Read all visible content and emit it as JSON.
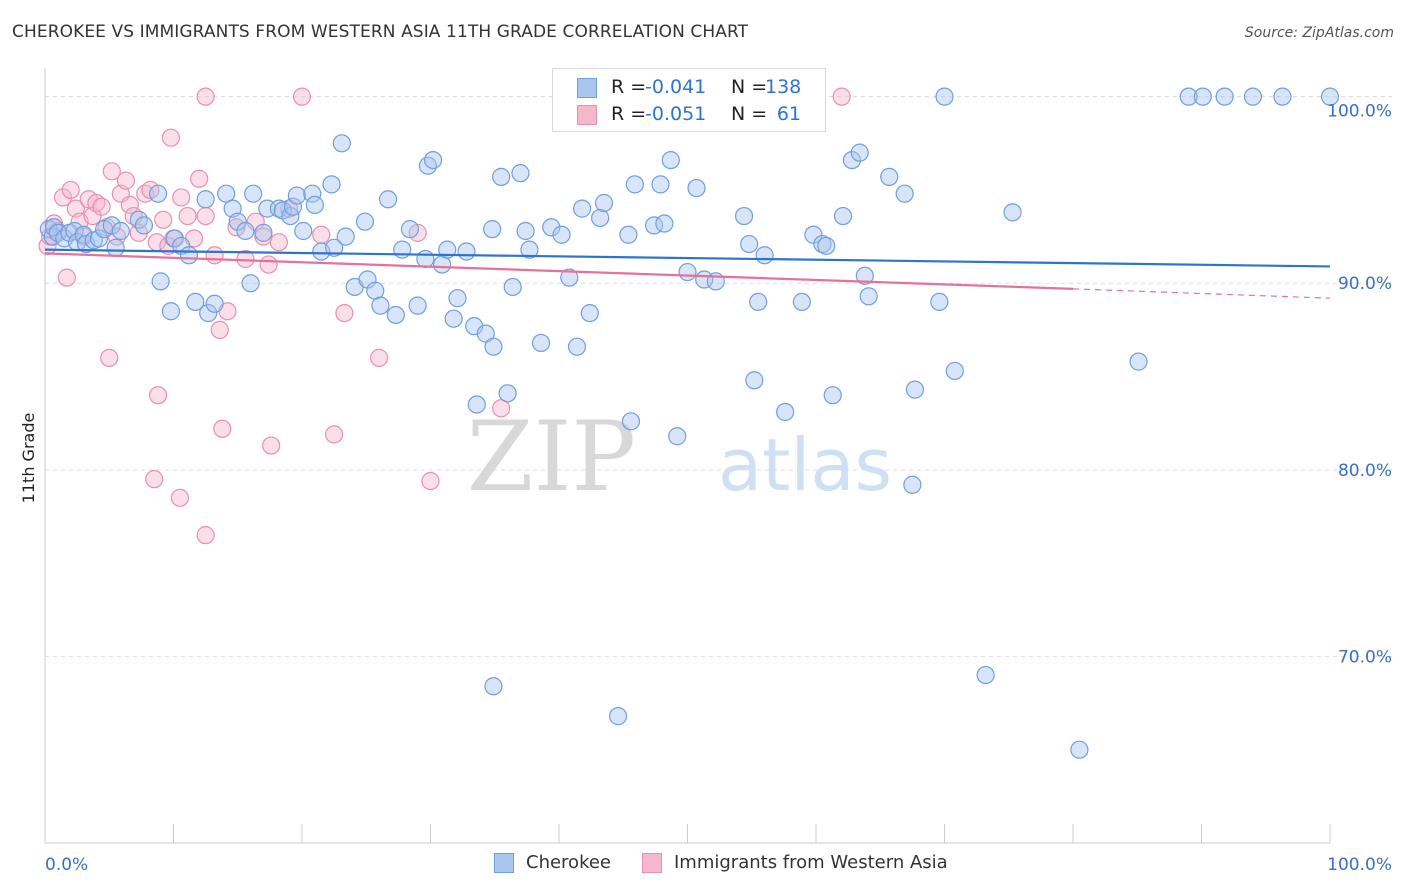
{
  "header": {
    "title": "CHEROKEE VS IMMIGRANTS FROM WESTERN ASIA 11TH GRADE CORRELATION CHART",
    "source": "Source: ZipAtlas.com"
  },
  "watermark": {
    "zip": "ZIP",
    "atlas": "atlas"
  },
  "legend": {
    "r_label": "R =",
    "n_label": "N =",
    "rows": [
      {
        "r": "-0.041",
        "n": "138"
      },
      {
        "r": "-0.051",
        "n": "61"
      }
    ]
  },
  "colors": {
    "blue_fill": "#a9c6ef",
    "blue_stroke": "#6f9fdd",
    "blue_line": "#2f73d0",
    "pink_fill": "#f5b8cb",
    "pink_stroke": "#ea8fae",
    "pink_line": "#e5729a",
    "axis_text": "#3a6fc4",
    "grid": "#dddddd"
  },
  "chart_data": {
    "type": "scatter",
    "title": "CHEROKEE VS IMMIGRANTS FROM WESTERN ASIA 11TH GRADE CORRELATION CHART",
    "xlabel": "",
    "ylabel": "11th Grade",
    "xlim": [
      0,
      100
    ],
    "ylim": [
      60,
      102
    ],
    "x_tick_labels": [
      "0.0%",
      "100.0%"
    ],
    "y_tick_labels": [
      {
        "value": 100,
        "label": "100.0%"
      },
      {
        "value": 90,
        "label": "90.0%"
      },
      {
        "value": 80,
        "label": "80.0%"
      },
      {
        "value": 70,
        "label": "70.0%"
      }
    ],
    "series": [
      {
        "name": "Cherokee",
        "r": -0.041,
        "n": 138,
        "trend": {
          "x": [
            0,
            100
          ],
          "y": [
            91.8,
            90.9
          ]
        },
        "points": [
          [
            0.3,
            92.9
          ],
          [
            0.6,
            92.5
          ],
          [
            0.7,
            93.0
          ],
          [
            1.0,
            92.7
          ],
          [
            1.5,
            92.4
          ],
          [
            1.9,
            92.7
          ],
          [
            2.3,
            92.8
          ],
          [
            2.5,
            92.2
          ],
          [
            3.0,
            92.6
          ],
          [
            3.2,
            92.1
          ],
          [
            3.8,
            92.3
          ],
          [
            4.2,
            92.4
          ],
          [
            4.6,
            92.9
          ],
          [
            5.2,
            93.1
          ],
          [
            5.5,
            91.9
          ],
          [
            5.9,
            92.8
          ],
          [
            7.3,
            93.4
          ],
          [
            7.7,
            93.1
          ],
          [
            8.8,
            94.8
          ],
          [
            9.0,
            90.1
          ],
          [
            9.8,
            88.5
          ],
          [
            10.1,
            92.4
          ],
          [
            10.6,
            92.0
          ],
          [
            11.2,
            91.5
          ],
          [
            11.7,
            89.0
          ],
          [
            12.5,
            94.5
          ],
          [
            12.7,
            88.4
          ],
          [
            13.2,
            88.9
          ],
          [
            14.1,
            94.8
          ],
          [
            14.6,
            94.0
          ],
          [
            15.0,
            93.3
          ],
          [
            15.6,
            92.8
          ],
          [
            16.0,
            90.0
          ],
          [
            16.2,
            94.8
          ],
          [
            17.0,
            92.7
          ],
          [
            17.3,
            94.0
          ],
          [
            18.2,
            94.0
          ],
          [
            18.5,
            93.9
          ],
          [
            19.1,
            93.6
          ],
          [
            19.3,
            94.1
          ],
          [
            19.6,
            94.7
          ],
          [
            20.1,
            92.8
          ],
          [
            20.8,
            94.8
          ],
          [
            21.0,
            94.2
          ],
          [
            21.5,
            91.7
          ],
          [
            22.5,
            91.9
          ],
          [
            22.3,
            95.3
          ],
          [
            23.1,
            97.5
          ],
          [
            23.4,
            92.5
          ],
          [
            24.1,
            89.8
          ],
          [
            24.9,
            93.3
          ],
          [
            25.1,
            90.2
          ],
          [
            25.7,
            89.6
          ],
          [
            26.1,
            88.8
          ],
          [
            26.7,
            94.5
          ],
          [
            27.3,
            88.3
          ],
          [
            27.8,
            91.8
          ],
          [
            28.4,
            92.9
          ],
          [
            29.0,
            88.8
          ],
          [
            29.6,
            91.3
          ],
          [
            29.8,
            96.3
          ],
          [
            30.2,
            96.6
          ],
          [
            30.9,
            91.0
          ],
          [
            31.3,
            91.8
          ],
          [
            31.8,
            88.1
          ],
          [
            32.1,
            89.2
          ],
          [
            32.8,
            91.7
          ],
          [
            33.4,
            87.7
          ],
          [
            33.6,
            83.5
          ],
          [
            34.3,
            87.3
          ],
          [
            34.8,
            92.9
          ],
          [
            34.9,
            86.6
          ],
          [
            34.9,
            68.4
          ],
          [
            35.5,
            95.7
          ],
          [
            36.0,
            84.1
          ],
          [
            36.4,
            89.8
          ],
          [
            37.0,
            95.9
          ],
          [
            37.4,
            92.8
          ],
          [
            37.7,
            91.8
          ],
          [
            38.6,
            86.8
          ],
          [
            39.4,
            93.0
          ],
          [
            40.2,
            92.6
          ],
          [
            40.8,
            90.3
          ],
          [
            41.4,
            86.6
          ],
          [
            41.8,
            94.0
          ],
          [
            42.4,
            88.4
          ],
          [
            43.2,
            93.5
          ],
          [
            43.5,
            94.3
          ],
          [
            44.6,
            66.8
          ],
          [
            45.4,
            92.6
          ],
          [
            45.6,
            82.6
          ],
          [
            45.9,
            95.3
          ],
          [
            47.4,
            93.1
          ],
          [
            47.9,
            95.3
          ],
          [
            48.2,
            93.2
          ],
          [
            48.7,
            96.6
          ],
          [
            49.2,
            81.8
          ],
          [
            50.0,
            90.6
          ],
          [
            50.7,
            95.1
          ],
          [
            51.3,
            90.2
          ],
          [
            52.2,
            90.1
          ],
          [
            54.4,
            93.6
          ],
          [
            54.8,
            92.1
          ],
          [
            55.2,
            84.8
          ],
          [
            55.5,
            89.0
          ],
          [
            56.0,
            91.5
          ],
          [
            57.6,
            83.1
          ],
          [
            58.9,
            89.0
          ],
          [
            59.8,
            92.6
          ],
          [
            60.5,
            92.1
          ],
          [
            60.8,
            92.0
          ],
          [
            61.3,
            84.0
          ],
          [
            62.1,
            93.6
          ],
          [
            62.8,
            96.6
          ],
          [
            63.4,
            97.0
          ],
          [
            63.8,
            90.4
          ],
          [
            64.1,
            89.3
          ],
          [
            65.7,
            95.7
          ],
          [
            66.9,
            94.8
          ],
          [
            67.5,
            79.2
          ],
          [
            67.7,
            84.3
          ],
          [
            69.6,
            89.0
          ],
          [
            70.8,
            85.3
          ],
          [
            73.2,
            69.0
          ],
          [
            75.3,
            93.8
          ],
          [
            85.1,
            85.8
          ],
          [
            89.0,
            100.0
          ],
          [
            90.1,
            100.0
          ],
          [
            91.8,
            100.0
          ],
          [
            94.0,
            100.0
          ],
          [
            96.3,
            100.0
          ],
          [
            100.0,
            100.0
          ],
          [
            80.5,
            65.0
          ],
          [
            70.0,
            100.0
          ]
        ]
      },
      {
        "name": "Immigrants from Western Asia",
        "r": -0.051,
        "n": 61,
        "trend": {
          "x": [
            0,
            80
          ],
          "y": [
            91.6,
            89.7
          ]
        },
        "trend_extension": {
          "x": [
            80,
            100
          ],
          "y": [
            89.7,
            89.2
          ]
        },
        "points": [
          [
            0.2,
            92.0
          ],
          [
            0.4,
            92.5
          ],
          [
            0.7,
            93.2
          ],
          [
            1.0,
            92.8
          ],
          [
            1.4,
            94.6
          ],
          [
            1.7,
            90.3
          ],
          [
            2.0,
            95.0
          ],
          [
            2.4,
            94.0
          ],
          [
            2.7,
            93.3
          ],
          [
            3.0,
            92.5
          ],
          [
            3.4,
            94.5
          ],
          [
            3.7,
            93.6
          ],
          [
            4.0,
            94.3
          ],
          [
            4.4,
            94.1
          ],
          [
            4.8,
            93.0
          ],
          [
            5.2,
            96.0
          ],
          [
            5.6,
            92.5
          ],
          [
            5.9,
            94.8
          ],
          [
            6.3,
            95.5
          ],
          [
            6.6,
            94.2
          ],
          [
            6.9,
            93.6
          ],
          [
            7.3,
            92.7
          ],
          [
            7.8,
            94.8
          ],
          [
            8.2,
            95.0
          ],
          [
            8.7,
            92.2
          ],
          [
            9.2,
            93.4
          ],
          [
            9.6,
            92.0
          ],
          [
            10.0,
            92.4
          ],
          [
            10.6,
            94.6
          ],
          [
            11.1,
            93.6
          ],
          [
            11.6,
            92.4
          ],
          [
            12.0,
            95.6
          ],
          [
            12.5,
            93.6
          ],
          [
            13.2,
            91.5
          ],
          [
            13.6,
            87.5
          ],
          [
            14.2,
            88.5
          ],
          [
            14.9,
            93.0
          ],
          [
            15.6,
            91.3
          ],
          [
            16.4,
            93.3
          ],
          [
            17.0,
            92.5
          ],
          [
            17.4,
            91.0
          ],
          [
            18.2,
            92.2
          ],
          [
            19.0,
            94.0
          ],
          [
            21.5,
            92.6
          ],
          [
            23.3,
            88.4
          ],
          [
            26.0,
            86.0
          ],
          [
            29.0,
            92.7
          ],
          [
            8.8,
            84.0
          ],
          [
            10.5,
            78.5
          ],
          [
            13.8,
            82.2
          ],
          [
            17.6,
            81.3
          ],
          [
            22.5,
            81.9
          ],
          [
            30.0,
            79.4
          ],
          [
            35.5,
            83.3
          ],
          [
            8.5,
            79.5
          ],
          [
            12.5,
            76.5
          ],
          [
            12.5,
            100.0
          ],
          [
            20.0,
            100.0
          ],
          [
            62.0,
            100.0
          ],
          [
            5.0,
            86.0
          ],
          [
            9.8,
            97.8
          ]
        ]
      }
    ]
  },
  "bottom_legend": [
    {
      "label": "Cherokee"
    },
    {
      "label": "Immigrants from Western Asia"
    }
  ]
}
